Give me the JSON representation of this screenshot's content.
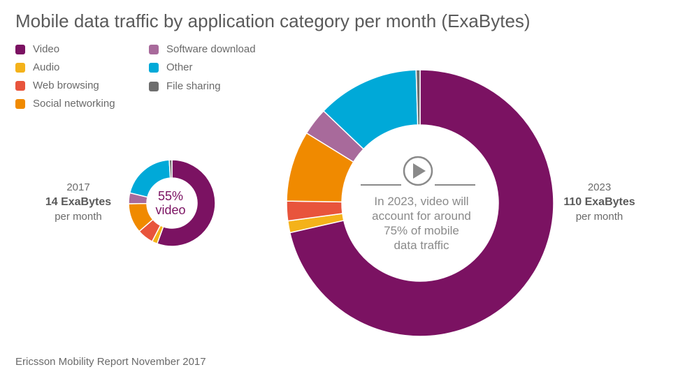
{
  "title": "Mobile data traffic by application category per month (ExaBytes)",
  "source": "Ericsson Mobility Report November 2017",
  "legend": {
    "items": [
      {
        "label": "Video",
        "color": "#7b1262"
      },
      {
        "label": "Audio",
        "color": "#f4b21a"
      },
      {
        "label": "Web browsing",
        "color": "#e8543c"
      },
      {
        "label": "Social networking",
        "color": "#f08a00"
      },
      {
        "label": "Software download",
        "color": "#a86a9b"
      },
      {
        "label": "Other",
        "color": "#00a9d8"
      },
      {
        "label": "File sharing",
        "color": "#6e6e6e"
      }
    ]
  },
  "labels_2017": {
    "year": "2017",
    "total": "14 ExaBytes",
    "unit": "per month",
    "center_line1": "55%",
    "center_line2": "video"
  },
  "labels_2023": {
    "year": "2023",
    "total": "110 ExaBytes",
    "unit": "per month"
  },
  "callout": {
    "line1": "In 2023, video will",
    "line2": "account for around",
    "line3": "75% of mobile",
    "line4": "data traffic",
    "icon": "play-icon"
  },
  "chart_data": [
    {
      "type": "pie",
      "title": "2017",
      "total": 14,
      "categories": [
        "Video",
        "Audio",
        "Web browsing",
        "Social networking",
        "Software download",
        "Other",
        "File sharing"
      ],
      "values": [
        55,
        2,
        6,
        11,
        4,
        20,
        1
      ]
    },
    {
      "type": "pie",
      "title": "2023",
      "total": 110,
      "categories": [
        "Video",
        "Audio",
        "Web browsing",
        "Social networking",
        "Software download",
        "Other",
        "File sharing"
      ],
      "values": [
        75,
        1.5,
        2.5,
        9,
        3.5,
        13,
        0.5
      ]
    }
  ]
}
